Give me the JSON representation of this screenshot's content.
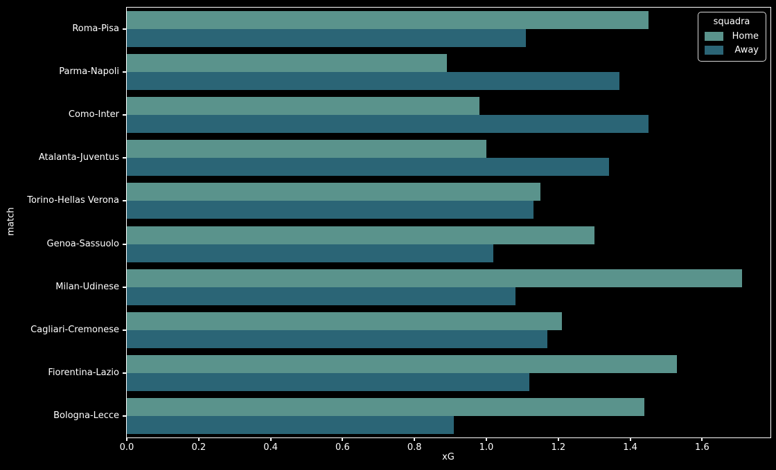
{
  "colors": {
    "background": "#000000",
    "text": "#ffffff",
    "spine": "#ffffff",
    "home": "#5a938c",
    "away": "#2b6576",
    "legend_border": "#d9d9d9"
  },
  "chart_data": {
    "type": "bar",
    "orientation": "horizontal",
    "title": "",
    "xlabel": "xG",
    "ylabel": "match",
    "categories": [
      "Roma-Pisa",
      "Parma-Napoli",
      "Como-Inter",
      "Atalanta-Juventus",
      "Torino-Hellas Verona",
      "Genoa-Sassuolo",
      "Milan-Udinese",
      "Cagliari-Cremonese",
      "Fiorentina-Lazio",
      "Bologna-Lecce"
    ],
    "series": [
      {
        "name": "Home",
        "color": "#5a938c",
        "values": [
          1.45,
          0.89,
          0.98,
          1.0,
          1.15,
          1.3,
          1.71,
          1.21,
          1.53,
          1.44
        ]
      },
      {
        "name": "Away",
        "color": "#2b6576",
        "values": [
          1.11,
          1.37,
          1.45,
          1.34,
          1.13,
          1.02,
          1.08,
          1.17,
          1.12,
          0.91
        ]
      }
    ],
    "xlim": [
      0,
      1.79
    ],
    "xtick_labels": [
      "0.0",
      "0.2",
      "0.4",
      "0.6",
      "0.8",
      "1.0",
      "1.2",
      "1.4",
      "1.6"
    ],
    "grid": false,
    "legend": {
      "title": "squadra",
      "position": "upper right",
      "entries": [
        "Home",
        "Away"
      ]
    }
  }
}
